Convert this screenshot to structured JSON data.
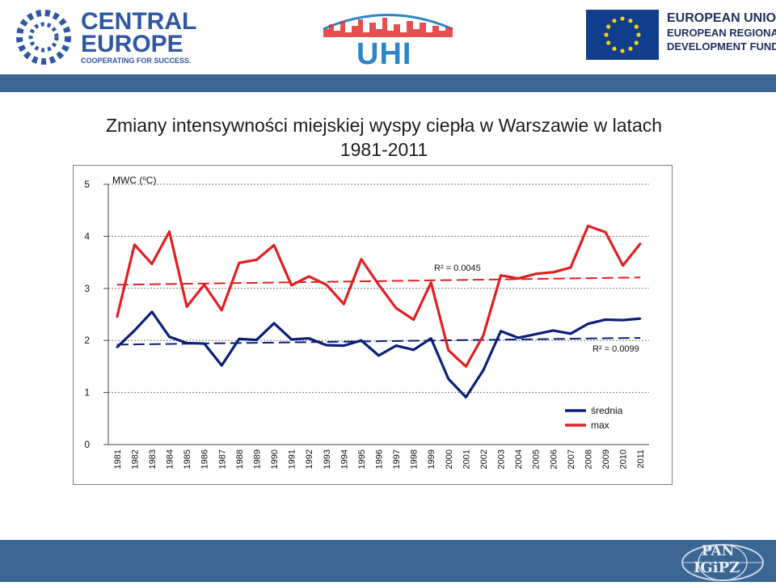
{
  "header": {
    "central_europe": {
      "line1": "CENTRAL",
      "line2": "EUROPE",
      "tagline": "COOPERATING FOR SUCCESS."
    },
    "uhi": {
      "text": "UHI"
    },
    "eu": {
      "line1": "EUROPEAN UNION",
      "line2": "EUROPEAN REGIONAL",
      "line3": "DEVELOPMENT FUND"
    }
  },
  "slide_title": {
    "line1": "Zmiany intensywności miejskiej wyspy ciepła w Warszawie w latach",
    "line2": "1981-2011"
  },
  "footer": {
    "pan_line1": "PAN",
    "pan_line2": "IGiPZ"
  },
  "colors": {
    "band": "#3b6593",
    "srednia": "#0b1f7a",
    "max": "#e02020"
  },
  "chart_data": {
    "type": "line",
    "ylabel": "MWC (",
    "ylabel_sup": "o",
    "ylabel_end": "C)",
    "ylim": [
      0,
      5
    ],
    "yticks": [
      "0",
      "1",
      "2",
      "3",
      "4",
      "5"
    ],
    "grid": "dashed-horizontal",
    "legend_position": "bottom-right",
    "categories": [
      "1981",
      "1982",
      "1983",
      "1984",
      "1985",
      "1986",
      "1987",
      "1988",
      "1989",
      "1990",
      "1991",
      "1992",
      "1993",
      "1994",
      "1995",
      "1996",
      "1997",
      "1998",
      "1999",
      "2000",
      "2001",
      "2002",
      "2003",
      "2004",
      "2005",
      "2006",
      "2007",
      "2008",
      "2009",
      "2010",
      "2011"
    ],
    "series": [
      {
        "name": "średnia",
        "color": "#0b1f7a",
        "values": [
          1.87,
          2.19,
          2.55,
          2.07,
          1.95,
          1.94,
          1.52,
          2.03,
          2.01,
          2.33,
          2.02,
          2.04,
          1.91,
          1.9,
          2.0,
          1.71,
          1.9,
          1.82,
          2.04,
          1.26,
          0.91,
          1.43,
          2.18,
          2.05,
          2.12,
          2.19,
          2.13,
          2.32,
          2.4,
          2.39,
          2.42
        ],
        "trend": {
          "start": 1.92,
          "end": 2.05,
          "label": "R² = 0.0099"
        }
      },
      {
        "name": "max",
        "color": "#e02020",
        "values": [
          2.45,
          3.84,
          3.47,
          4.09,
          2.65,
          3.07,
          2.58,
          3.49,
          3.55,
          3.83,
          3.06,
          3.23,
          3.07,
          2.7,
          3.56,
          3.07,
          2.62,
          2.4,
          3.11,
          1.81,
          1.5,
          2.1,
          3.25,
          3.19,
          3.28,
          3.31,
          3.4,
          4.2,
          4.08,
          3.44,
          3.86
        ],
        "trend": {
          "start": 3.07,
          "end": 3.21,
          "label": "R² = 0.0045"
        }
      }
    ]
  }
}
